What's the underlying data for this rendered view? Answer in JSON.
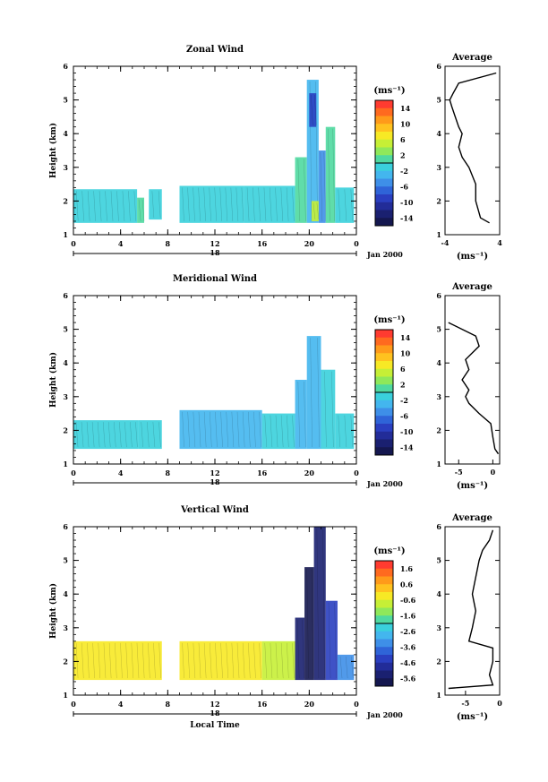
{
  "figure": {
    "xlabel": "Local Time",
    "date_label": "Jan 2000",
    "date_marker": "18",
    "ylabel": "Height (km)",
    "unit_label": "(ms⁻¹)",
    "avg_unit_label": "(ms⁻¹)",
    "avg_title": "Average"
  },
  "chart_data": [
    {
      "type": "heatmap",
      "title": "Zonal Wind",
      "xlabel": "",
      "ylabel": "Height (km)",
      "x_ticks": [
        "0",
        "4",
        "8",
        "12",
        "16",
        "20",
        "0"
      ],
      "x_range": [
        0,
        24
      ],
      "y_ticks": [
        "1",
        "2",
        "3",
        "4",
        "5",
        "6"
      ],
      "y_range": [
        1,
        6
      ],
      "colorbar": {
        "labels": [
          "14",
          "10",
          "6",
          "2",
          "-2",
          "-6",
          "-10",
          "-14"
        ],
        "range": [
          -16,
          16
        ],
        "colors": [
          "#ff3b30",
          "#ff6a1f",
          "#ff9a1a",
          "#ffc21f",
          "#f7e925",
          "#c6ef36",
          "#8fe85a",
          "#4fd9a0",
          "#3ad0dc",
          "#43b6ee",
          "#3e8fe8",
          "#2f64d8",
          "#2a3fc0",
          "#222c98",
          "#1a2070",
          "#14174f"
        ]
      },
      "cells": [
        {
          "x0": 0.0,
          "x1": 5.4,
          "y0": 1.35,
          "y1": 2.35,
          "value": -1
        },
        {
          "x0": 5.4,
          "x1": 6.0,
          "y0": 1.35,
          "y1": 2.1,
          "value": 1
        },
        {
          "x0": 6.4,
          "x1": 7.5,
          "y0": 1.45,
          "y1": 2.35,
          "value": -1
        },
        {
          "x0": 9.0,
          "x1": 14.5,
          "y0": 1.35,
          "y1": 2.45,
          "value": -1
        },
        {
          "x0": 14.5,
          "x1": 18.8,
          "y0": 1.35,
          "y1": 2.45,
          "value": 0
        },
        {
          "x0": 18.8,
          "x1": 19.8,
          "y0": 1.35,
          "y1": 3.3,
          "value": 2
        },
        {
          "x0": 19.8,
          "x1": 20.8,
          "y0": 1.35,
          "y1": 5.6,
          "value": -2
        },
        {
          "x0": 20.0,
          "x1": 20.6,
          "y0": 4.2,
          "y1": 5.2,
          "value": -8
        },
        {
          "x0": 20.8,
          "x1": 21.4,
          "y0": 1.35,
          "y1": 3.5,
          "value": -4
        },
        {
          "x0": 21.4,
          "x1": 22.2,
          "y0": 1.35,
          "y1": 4.2,
          "value": 1
        },
        {
          "x0": 22.2,
          "x1": 23.8,
          "y0": 1.35,
          "y1": 2.4,
          "value": -1
        },
        {
          "x0": 20.2,
          "x1": 20.8,
          "y0": 1.4,
          "y1": 2.0,
          "value": 6
        }
      ],
      "average": {
        "x_ticks": [
          "-4",
          "4"
        ],
        "x_range": [
          -4,
          4
        ],
        "height": [
          1.35,
          1.5,
          2.0,
          2.5,
          3.0,
          3.3,
          3.6,
          4.0,
          4.2,
          4.5,
          4.8,
          5.0,
          5.2,
          5.5,
          5.8
        ],
        "value": [
          2.5,
          1.2,
          0.5,
          0.5,
          -0.5,
          -1.5,
          -2.0,
          -1.5,
          -2.0,
          -2.5,
          -3.0,
          -3.3,
          -2.8,
          -2.0,
          3.5
        ]
      }
    },
    {
      "type": "heatmap",
      "title": "Meridional Wind",
      "xlabel": "",
      "ylabel": "Height (km)",
      "x_ticks": [
        "0",
        "4",
        "8",
        "12",
        "16",
        "20",
        "0"
      ],
      "x_range": [
        0,
        24
      ],
      "y_ticks": [
        "1",
        "2",
        "3",
        "4",
        "5",
        "6"
      ],
      "y_range": [
        1,
        6
      ],
      "colorbar": {
        "labels": [
          "14",
          "10",
          "6",
          "2",
          "-2",
          "-6",
          "-10",
          "-14"
        ],
        "range": [
          -16,
          16
        ],
        "colors": [
          "#ff3b30",
          "#ff6a1f",
          "#ff9a1a",
          "#ffc21f",
          "#f7e925",
          "#c6ef36",
          "#8fe85a",
          "#4fd9a0",
          "#3ad0dc",
          "#43b6ee",
          "#3e8fe8",
          "#2f64d8",
          "#2a3fc0",
          "#222c98",
          "#1a2070",
          "#14174f"
        ]
      },
      "cells": [
        {
          "x0": 0.0,
          "x1": 5.5,
          "y0": 1.45,
          "y1": 2.3,
          "value": -1
        },
        {
          "x0": 5.5,
          "x1": 7.5,
          "y0": 1.45,
          "y1": 2.3,
          "value": 0
        },
        {
          "x0": 9.0,
          "x1": 16.0,
          "y0": 1.45,
          "y1": 2.6,
          "value": -2
        },
        {
          "x0": 16.0,
          "x1": 18.8,
          "y0": 1.45,
          "y1": 2.5,
          "value": -1
        },
        {
          "x0": 18.8,
          "x1": 19.8,
          "y0": 1.45,
          "y1": 3.5,
          "value": -3
        },
        {
          "x0": 19.8,
          "x1": 21.0,
          "y0": 1.45,
          "y1": 4.8,
          "value": -2
        },
        {
          "x0": 21.0,
          "x1": 22.2,
          "y0": 1.45,
          "y1": 3.8,
          "value": -1
        },
        {
          "x0": 22.2,
          "x1": 23.8,
          "y0": 1.45,
          "y1": 2.5,
          "value": 0
        }
      ],
      "average": {
        "x_ticks": [
          "-5",
          "0"
        ],
        "x_range": [
          -7,
          1
        ],
        "height": [
          1.3,
          1.45,
          1.8,
          2.2,
          2.5,
          2.8,
          3.0,
          3.2,
          3.5,
          3.8,
          4.1,
          4.5,
          4.8,
          5.0,
          5.2
        ],
        "value": [
          0.8,
          0.3,
          0.0,
          -0.3,
          -2.0,
          -3.5,
          -4.0,
          -3.5,
          -4.5,
          -3.5,
          -4.0,
          -2.0,
          -2.5,
          -4.5,
          -6.5
        ]
      }
    },
    {
      "type": "heatmap",
      "title": "Vertical Wind",
      "xlabel": "Local Time",
      "ylabel": "Height (km)",
      "x_ticks": [
        "0",
        "4",
        "8",
        "12",
        "16",
        "20",
        "0"
      ],
      "x_range": [
        0,
        24
      ],
      "y_ticks": [
        "1",
        "2",
        "3",
        "4",
        "5",
        "6"
      ],
      "y_range": [
        1,
        6
      ],
      "colorbar": {
        "labels": [
          "1.6",
          "0.6",
          "-0.6",
          "-1.6",
          "-2.6",
          "-3.6",
          "-4.6",
          "-5.6"
        ],
        "range": [
          -6.0,
          2.0
        ],
        "colors": [
          "#ff3b30",
          "#ff6a1f",
          "#ff9a1a",
          "#ffc21f",
          "#f7e925",
          "#c6ef36",
          "#8fe85a",
          "#4fd9a0",
          "#3ad0dc",
          "#43b6ee",
          "#3e8fe8",
          "#2f64d8",
          "#2a3fc0",
          "#222c98",
          "#1a2070",
          "#14174f"
        ]
      },
      "cells": [
        {
          "x0": 0.0,
          "x1": 7.5,
          "y0": 1.45,
          "y1": 2.6,
          "value": -0.3
        },
        {
          "x0": 9.0,
          "x1": 16.0,
          "y0": 1.45,
          "y1": 2.6,
          "value": -0.4
        },
        {
          "x0": 16.0,
          "x1": 18.8,
          "y0": 1.45,
          "y1": 2.6,
          "value": -0.5
        },
        {
          "x0": 18.8,
          "x1": 19.6,
          "y0": 1.45,
          "y1": 3.3,
          "value": -5.0
        },
        {
          "x0": 19.6,
          "x1": 20.4,
          "y0": 1.45,
          "y1": 4.8,
          "value": -5.6
        },
        {
          "x0": 20.4,
          "x1": 21.4,
          "y0": 1.45,
          "y1": 6.0,
          "value": -5.2
        },
        {
          "x0": 21.4,
          "x1": 22.4,
          "y0": 1.45,
          "y1": 3.8,
          "value": -4.0
        },
        {
          "x0": 22.4,
          "x1": 23.8,
          "y0": 1.45,
          "y1": 2.2,
          "value": -3.0
        }
      ],
      "average": {
        "x_ticks": [
          "-5",
          "0"
        ],
        "x_range": [
          -8,
          0
        ],
        "height": [
          1.2,
          1.3,
          1.6,
          2.0,
          2.4,
          2.6,
          3.0,
          3.5,
          4.0,
          4.5,
          5.0,
          5.3,
          5.6,
          5.9
        ],
        "value": [
          -7.5,
          -1.0,
          -1.5,
          -1.0,
          -1.0,
          -4.5,
          -4.0,
          -3.5,
          -4.0,
          -3.5,
          -3.0,
          -2.5,
          -1.5,
          -1.0
        ]
      }
    }
  ]
}
